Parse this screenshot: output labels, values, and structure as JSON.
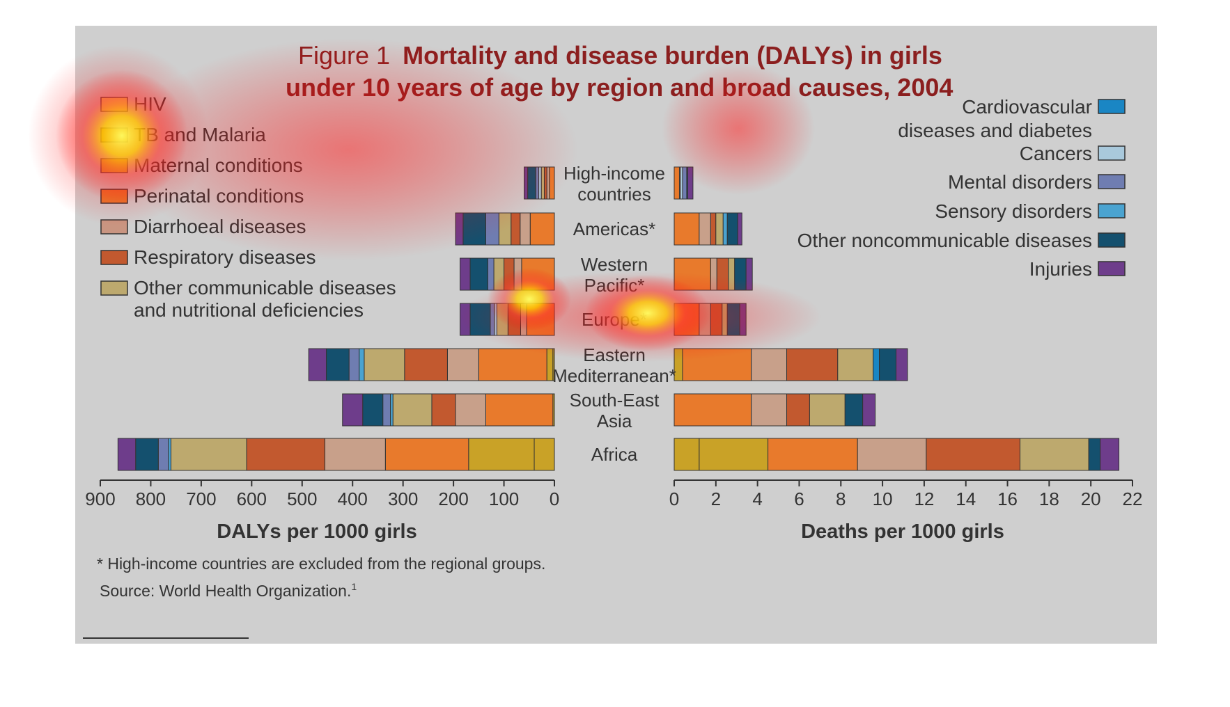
{
  "chart_data": {
    "type": "bar",
    "title_prefix": "Figure 1",
    "title_line1": "Mortality and disease burden (DALYs) in girls",
    "title_line2": "under 10 years of age by region and broad causes, 2004",
    "footnote": "* High-income countries are excluded from the regional groups.",
    "source": "Source: World Health Organization.",
    "source_sup": "1",
    "causes": [
      {
        "name": "HIV",
        "color": "#c9a227"
      },
      {
        "name": "TB and Malaria",
        "color": "#c9a227"
      },
      {
        "name": "Maternal conditions",
        "color": "#d0a52d"
      },
      {
        "name": "Perinatal conditions",
        "color": "#e87a2c"
      },
      {
        "name": "Diarrhoeal diseases",
        "color": "#c8a08a"
      },
      {
        "name": "Respiratory diseases",
        "color": "#c2592f"
      },
      {
        "name": "Other communicable diseases",
        "color": "#bda96e"
      },
      {
        "name": "Cardiovascular diseases and diabetes",
        "color": "#1a86c4"
      },
      {
        "name": "Cancers",
        "color": "#a9c9dc"
      },
      {
        "name": "Mental disorders",
        "color": "#6f7db1"
      },
      {
        "name": "Sensory disorders",
        "color": "#4aa3d0"
      },
      {
        "name": "Other noncommunicable diseases",
        "color": "#14506e"
      },
      {
        "name": "Injuries",
        "color": "#6e3d8b"
      }
    ],
    "legend_left": [
      {
        "label": "HIV",
        "color": "#e8d860"
      },
      {
        "label": "TB and Malaria",
        "color": "#c9a227"
      },
      {
        "label": "Maternal conditions",
        "color": "#d7b42a"
      },
      {
        "label": "Perinatal conditions",
        "color": "#e67a2d"
      },
      {
        "label": "Diarrhoeal diseases",
        "color": "#c99581"
      },
      {
        "label": "Respiratory diseases",
        "color": "#c2592f"
      },
      {
        "label": "Other communicable diseases",
        "label2": "and nutritional deficiencies",
        "color": "#bda96e"
      }
    ],
    "legend_right": [
      {
        "label": "Cardiovascular",
        "label2": "diseases and diabetes",
        "color": "#1a86c4"
      },
      {
        "label": "Cancers",
        "color": "#a9c9dc"
      },
      {
        "label": "Mental disorders",
        "color": "#6f7db1"
      },
      {
        "label": "Sensory disorders",
        "color": "#4aa3d0"
      },
      {
        "label": "Other noncommunicable diseases",
        "color": "#14506e"
      },
      {
        "label": "Injuries",
        "color": "#6e3d8b"
      }
    ],
    "regions": [
      {
        "line1": "High-income",
        "line2": "countries",
        "dalys": [
          [
            "Perinatal conditions",
            10
          ],
          [
            "Diarrhoeal diseases",
            5
          ],
          [
            "Respiratory diseases",
            5
          ],
          [
            "Other communicable diseases",
            6
          ],
          [
            "Cancers",
            5
          ],
          [
            "Mental disorders",
            6
          ],
          [
            "Other noncommunicable diseases",
            16
          ],
          [
            "Injuries",
            7
          ]
        ],
        "deaths": [
          [
            "Perinatal conditions",
            0.25
          ],
          [
            "Diarrhoeal diseases",
            0.05
          ],
          [
            "Cancers",
            0.1
          ],
          [
            "Mental disorders",
            0.2
          ],
          [
            "Other noncommunicable diseases",
            0.05
          ],
          [
            "Injuries",
            0.25
          ]
        ]
      },
      {
        "line1": "Americas*",
        "line2": "",
        "dalys": [
          [
            "Perinatal conditions",
            48
          ],
          [
            "Diarrhoeal diseases",
            20
          ],
          [
            "Respiratory diseases",
            18
          ],
          [
            "Other communicable diseases",
            24
          ],
          [
            "Mental disorders",
            26
          ],
          [
            "Other noncommunicable diseases",
            45
          ],
          [
            "Injuries",
            15
          ]
        ],
        "deaths": [
          [
            "Perinatal conditions",
            1.2
          ],
          [
            "Diarrhoeal diseases",
            0.55
          ],
          [
            "Respiratory diseases",
            0.25
          ],
          [
            "Other communicable diseases",
            0.35
          ],
          [
            "Sensory disorders",
            0.2
          ],
          [
            "Other noncommunicable diseases",
            0.5
          ],
          [
            "Injuries",
            0.2
          ]
        ]
      },
      {
        "line1": "Western",
        "line2": "Pacific*",
        "dalys": [
          [
            "Perinatal conditions",
            65
          ],
          [
            "Diarrhoeal diseases",
            15
          ],
          [
            "Respiratory diseases",
            20
          ],
          [
            "Other communicable diseases",
            20
          ],
          [
            "Mental disorders",
            12
          ],
          [
            "Other noncommunicable diseases",
            35
          ],
          [
            "Injuries",
            20
          ]
        ],
        "deaths": [
          [
            "Perinatal conditions",
            1.75
          ],
          [
            "Diarrhoeal diseases",
            0.3
          ],
          [
            "Respiratory diseases",
            0.55
          ],
          [
            "Other communicable diseases",
            0.3
          ],
          [
            "Other noncommunicable diseases",
            0.55
          ],
          [
            "Injuries",
            0.3
          ]
        ]
      },
      {
        "line1": "Europe*",
        "line2": "",
        "dalys": [
          [
            "Perinatal conditions",
            55
          ],
          [
            "Diarrhoeal diseases",
            12
          ],
          [
            "Respiratory diseases",
            25
          ],
          [
            "Other communicable diseases",
            22
          ],
          [
            "Cancers",
            5
          ],
          [
            "Mental disorders",
            8
          ],
          [
            "Other noncommunicable diseases",
            40
          ],
          [
            "Injuries",
            20
          ]
        ],
        "deaths": [
          [
            "Perinatal conditions",
            1.2
          ],
          [
            "Diarrhoeal diseases",
            0.55
          ],
          [
            "Respiratory diseases",
            0.55
          ],
          [
            "Other communicable diseases",
            0.25
          ],
          [
            "Other noncommunicable diseases",
            0.6
          ],
          [
            "Injuries",
            0.3
          ]
        ]
      },
      {
        "line1": "Eastern",
        "line2": "Mediterranean*",
        "dalys": [
          [
            "HIV",
            3
          ],
          [
            "TB and Malaria",
            12
          ],
          [
            "Perinatal conditions",
            135
          ],
          [
            "Diarrhoeal diseases",
            62
          ],
          [
            "Respiratory diseases",
            85
          ],
          [
            "Other communicable diseases",
            80
          ],
          [
            "Sensory disorders",
            10
          ],
          [
            "Mental disorders",
            20
          ],
          [
            "Other noncommunicable diseases",
            45
          ],
          [
            "Injuries",
            35
          ]
        ],
        "deaths": [
          [
            "TB and Malaria",
            0.4
          ],
          [
            "Perinatal conditions",
            3.3
          ],
          [
            "Diarrhoeal diseases",
            1.7
          ],
          [
            "Respiratory diseases",
            2.45
          ],
          [
            "Other communicable diseases",
            1.7
          ],
          [
            "Cardiovascular diseases and diabetes",
            0.3
          ],
          [
            "Other noncommunicable diseases",
            0.8
          ],
          [
            "Injuries",
            0.55
          ]
        ]
      },
      {
        "line1": "South-East",
        "line2": "Asia",
        "dalys": [
          [
            "TB and Malaria",
            3
          ],
          [
            "Perinatal conditions",
            133
          ],
          [
            "Diarrhoeal diseases",
            60
          ],
          [
            "Respiratory diseases",
            47
          ],
          [
            "Other communicable diseases",
            77
          ],
          [
            "Sensory disorders",
            5
          ],
          [
            "Mental disorders",
            15
          ],
          [
            "Other noncommunicable diseases",
            40
          ],
          [
            "Injuries",
            40
          ]
        ],
        "deaths": [
          [
            "Perinatal conditions",
            3.7
          ],
          [
            "Diarrhoeal diseases",
            1.7
          ],
          [
            "Respiratory diseases",
            1.1
          ],
          [
            "Other communicable diseases",
            1.7
          ],
          [
            "Other noncommunicable diseases",
            0.85
          ],
          [
            "Injuries",
            0.6
          ]
        ]
      },
      {
        "line1": "Africa",
        "line2": "",
        "dalys": [
          [
            "HIV",
            40
          ],
          [
            "TB and Malaria",
            130
          ],
          [
            "Perinatal conditions",
            165
          ],
          [
            "Diarrhoeal diseases",
            120
          ],
          [
            "Respiratory diseases",
            155
          ],
          [
            "Other communicable diseases",
            150
          ],
          [
            "Sensory disorders",
            5
          ],
          [
            "Mental disorders",
            20
          ],
          [
            "Other noncommunicable diseases",
            45
          ],
          [
            "Injuries",
            35
          ]
        ],
        "deaths": [
          [
            "HIV",
            1.2
          ],
          [
            "TB and Malaria",
            3.3
          ],
          [
            "Perinatal conditions",
            4.3
          ],
          [
            "Diarrhoeal diseases",
            3.3
          ],
          [
            "Respiratory diseases",
            4.5
          ],
          [
            "Other communicable diseases",
            3.3
          ],
          [
            "Other noncommunicable diseases",
            0.55
          ],
          [
            "Injuries",
            0.9
          ]
        ]
      }
    ],
    "dalys_axis": {
      "label": "DALYs per 1000 girls",
      "min": 0,
      "max": 900,
      "ticks": [
        900,
        800,
        700,
        600,
        500,
        400,
        300,
        200,
        100,
        0
      ]
    },
    "deaths_axis": {
      "label": "Deaths per 1000 girls",
      "min": 0,
      "max": 22,
      "ticks": [
        0,
        2,
        4,
        6,
        8,
        10,
        12,
        14,
        16,
        18,
        20,
        22
      ]
    },
    "heatmap_overlay": true
  }
}
